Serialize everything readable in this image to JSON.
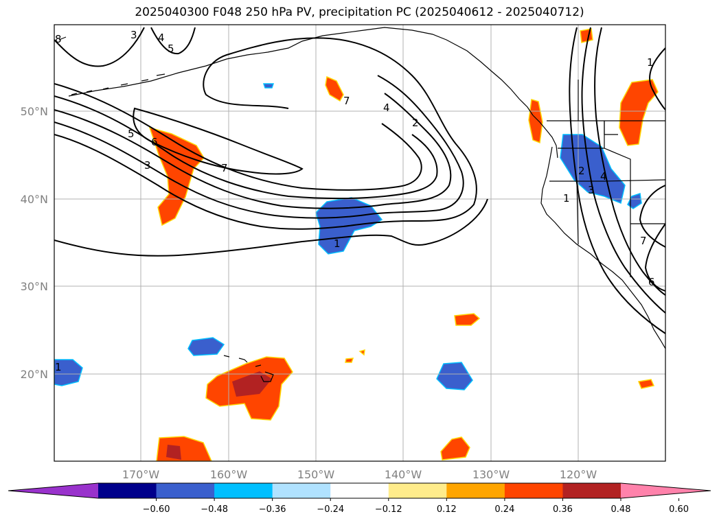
{
  "title": "2025040300 F048 250 hPa PV, precipitation PC (2025040612 - 2025040712)",
  "lat_labels": [
    "50°N",
    "40°N",
    "30°N",
    "20°N"
  ],
  "lon_labels": [
    "170°W",
    "160°W",
    "150°W",
    "140°W",
    "130°W",
    "120°W"
  ],
  "colorbar": {
    "ticks": [
      "−0.60",
      "−0.48",
      "−0.36",
      "−0.24",
      "−0.12",
      "0.12",
      "0.24",
      "0.36",
      "0.48",
      "0.60"
    ],
    "colors": [
      "#9932cc",
      "#00008b",
      "#3a5fcd",
      "#00bfff",
      "#b0e2ff",
      "#ffffff",
      "#ffec8b",
      "#ffa500",
      "#ff4500",
      "#b22222",
      "#ff82ab"
    ]
  },
  "contour_labels": [
    "8",
    "3",
    "4",
    "5",
    "5",
    "6",
    "3",
    "7",
    "7",
    "4",
    "2",
    "1",
    "1",
    "2",
    "3",
    "4",
    "1",
    "7",
    "6",
    "1"
  ],
  "colors": {
    "positive": "#ff4500",
    "positive_dark": "#b22222",
    "negative": "#3a5fcd",
    "gridline": "#b0b0b0",
    "coast": "#000000"
  }
}
